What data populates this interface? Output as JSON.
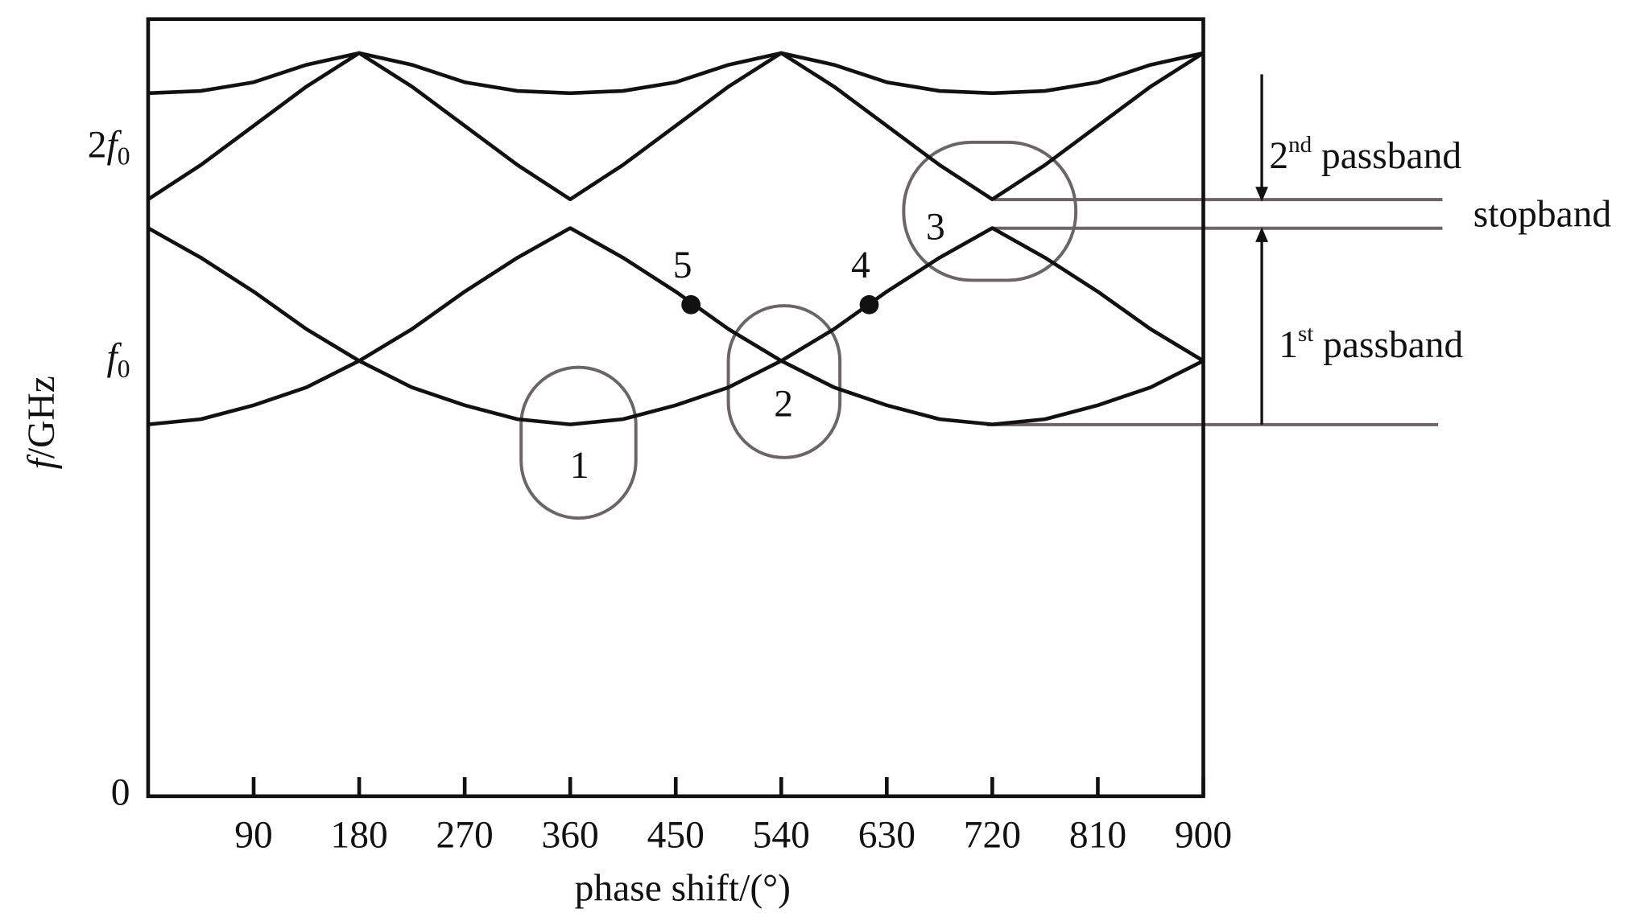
{
  "chart_data": {
    "type": "line",
    "x_label": "phase shift/(°)",
    "y_label": "f/GHz",
    "xlim": [
      0,
      900
    ],
    "ylim": [
      0,
      1.785
    ],
    "xticks": [
      90,
      180,
      270,
      360,
      450,
      540,
      630,
      720,
      810,
      900
    ],
    "yticks": [
      0,
      {
        "value": 1,
        "label": "f0"
      },
      {
        "value": 1.488,
        "label": "2f0"
      }
    ],
    "x": [
      0,
      45,
      90,
      135,
      180,
      225,
      270,
      315,
      360,
      405,
      450,
      495,
      540,
      585,
      630,
      675,
      720,
      765,
      810,
      855,
      900
    ],
    "series": [
      {
        "color": "#111111",
        "values": [
          0.854,
          0.866,
          0.898,
          0.939,
          1.0,
          1.073,
          1.159,
          1.237,
          1.305,
          1.237,
          1.159,
          1.073,
          1.0,
          0.939,
          0.898,
          0.866,
          0.854,
          0.866,
          0.898,
          0.939,
          1.0
        ]
      },
      {
        "color": "#111111",
        "values": [
          1.305,
          1.237,
          1.159,
          1.073,
          1.0,
          0.939,
          0.898,
          0.866,
          0.854,
          0.866,
          0.898,
          0.939,
          1.0,
          1.073,
          1.159,
          1.237,
          1.305,
          1.237,
          1.159,
          1.073,
          1.0
        ]
      },
      {
        "color": "#111111",
        "values": [
          1.371,
          1.45,
          1.54,
          1.63,
          1.707,
          1.63,
          1.54,
          1.45,
          1.371,
          1.45,
          1.54,
          1.63,
          1.707,
          1.63,
          1.54,
          1.45,
          1.371,
          1.45,
          1.54,
          1.63,
          1.707
        ]
      },
      {
        "color": "#111111",
        "values": [
          1.615,
          1.62,
          1.64,
          1.68,
          1.707,
          1.68,
          1.64,
          1.62,
          1.615,
          1.62,
          1.64,
          1.68,
          1.707,
          1.68,
          1.64,
          1.62,
          1.615,
          1.62,
          1.64,
          1.68,
          1.707
        ]
      }
    ],
    "points": [
      {
        "label": "5",
        "x": 463,
        "y": 1.129
      },
      {
        "label": "4",
        "x": 615,
        "y": 1.129
      }
    ],
    "annotations": [
      "1",
      "2",
      "3",
      "2nd passband",
      "stopband",
      "1st passband"
    ]
  }
}
